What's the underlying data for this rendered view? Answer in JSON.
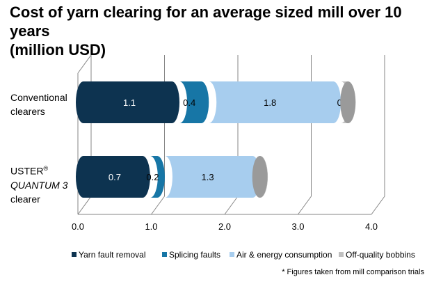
{
  "title_line1": "Cost of yarn clearing for an average sized mill over 10 years",
  "title_line2": "(million USD)",
  "footnote": "* Figures taken from mill comparison trials",
  "categories": [
    {
      "line1": "Conventional",
      "line2": "clearers"
    },
    {
      "line1_main": "USTER",
      "line1_sup": "®",
      "line2_italic": "QUANTUM 3",
      "line3": "clearer"
    }
  ],
  "chart_data": {
    "type": "bar",
    "orientation": "horizontal",
    "stacked": true,
    "style": "3d-cylinder",
    "categories": [
      "Conventional clearers",
      "USTER® QUANTUM 3 clearer"
    ],
    "series": [
      {
        "name": "Yarn fault removal",
        "values": [
          1.1,
          0.7
        ],
        "color": "#0d3350",
        "label_color": "#ffffff"
      },
      {
        "name": "Splicing faults",
        "values": [
          0.4,
          0.2
        ],
        "color": "#1776a6",
        "label_color": "#000000"
      },
      {
        "name": "Air & energy consumption",
        "values": [
          1.8,
          1.3
        ],
        "color": "#a7cdee",
        "label_color": "#000000"
      },
      {
        "name": "Off-quality bobbins",
        "values": [
          0.2,
          0.1
        ],
        "color": "#bfbfbf",
        "label_color": "#000000"
      }
    ],
    "xlim": [
      0,
      4
    ],
    "xticks": [
      "0.0",
      "1.0",
      "2.0",
      "3.0",
      "4.0"
    ],
    "grid": true,
    "legend": "bottom"
  }
}
